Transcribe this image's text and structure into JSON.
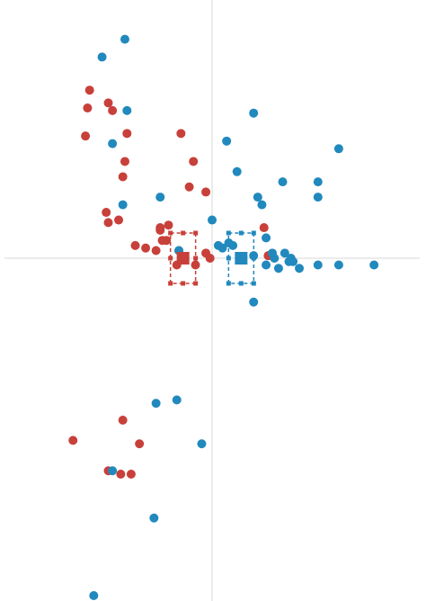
{
  "chart_data": {
    "type": "scatter",
    "title": "",
    "xlabel": "",
    "ylabel": "",
    "xlim": [
      -1.0,
      1.0
    ],
    "ylim": [
      -1.0,
      1.0
    ],
    "grid": false,
    "zero_lines": true,
    "series": [
      {
        "color": "#c8403a",
        "points": [
          [
            -0.59,
            0.66
          ],
          [
            -0.5,
            0.61
          ],
          [
            -0.6,
            0.59
          ],
          [
            -0.48,
            0.58
          ],
          [
            -0.61,
            0.48
          ],
          [
            -0.41,
            0.49
          ],
          [
            -0.15,
            0.49
          ],
          [
            -0.42,
            0.38
          ],
          [
            -0.09,
            0.38
          ],
          [
            -0.43,
            0.32
          ],
          [
            -0.11,
            0.28
          ],
          [
            -0.03,
            0.26
          ],
          [
            -0.51,
            0.18
          ],
          [
            -0.45,
            0.15
          ],
          [
            -0.5,
            0.14
          ],
          [
            -0.21,
            0.13
          ],
          [
            -0.25,
            0.12
          ],
          [
            -0.25,
            0.11
          ],
          [
            -0.24,
            0.07
          ],
          [
            -0.22,
            0.07
          ],
          [
            -0.37,
            0.05
          ],
          [
            -0.32,
            0.04
          ],
          [
            -0.27,
            0.03
          ],
          [
            -0.03,
            0.02
          ],
          [
            -0.01,
            0.0
          ],
          [
            0.25,
            0.12
          ],
          [
            0.27,
            0.01
          ],
          [
            -0.43,
            -0.48
          ],
          [
            -0.67,
            -0.54
          ],
          [
            -0.35,
            -0.55
          ],
          [
            -0.5,
            -0.63
          ],
          [
            -0.44,
            -0.64
          ],
          [
            -0.39,
            -0.64
          ],
          [
            -0.16,
            0.03
          ],
          [
            -0.17,
            -0.02
          ],
          [
            -0.08,
            -0.02
          ]
        ]
      },
      {
        "color": "#2189bd",
        "points": [
          [
            -0.42,
            0.86
          ],
          [
            -0.53,
            0.79
          ],
          [
            -0.41,
            0.58
          ],
          [
            0.2,
            0.57
          ],
          [
            -0.48,
            0.45
          ],
          [
            0.07,
            0.46
          ],
          [
            0.61,
            0.43
          ],
          [
            0.12,
            0.34
          ],
          [
            0.34,
            0.3
          ],
          [
            0.51,
            0.3
          ],
          [
            -0.25,
            0.24
          ],
          [
            0.22,
            0.24
          ],
          [
            0.24,
            0.21
          ],
          [
            0.51,
            0.24
          ],
          [
            -0.43,
            0.21
          ],
          [
            0.0,
            0.15
          ],
          [
            0.26,
            0.08
          ],
          [
            0.03,
            0.05
          ],
          [
            0.08,
            0.06
          ],
          [
            0.1,
            0.05
          ],
          [
            0.05,
            0.04
          ],
          [
            0.29,
            0.02
          ],
          [
            0.35,
            0.02
          ],
          [
            0.2,
            0.01
          ],
          [
            0.3,
            0.0
          ],
          [
            0.38,
            0.0
          ],
          [
            0.39,
            -0.01
          ],
          [
            0.37,
            -0.01
          ],
          [
            0.26,
            -0.02
          ],
          [
            0.32,
            -0.03
          ],
          [
            0.42,
            -0.03
          ],
          [
            0.51,
            -0.02
          ],
          [
            0.61,
            -0.02
          ],
          [
            0.78,
            -0.02
          ],
          [
            0.2,
            -0.13
          ],
          [
            -0.27,
            -0.43
          ],
          [
            -0.17,
            -0.42
          ],
          [
            -0.05,
            -0.55
          ],
          [
            -0.48,
            -0.63
          ],
          [
            -0.28,
            -0.77
          ],
          [
            -0.57,
            -1.0
          ],
          [
            -0.16,
            0.03
          ]
        ]
      }
    ],
    "centroids": [
      {
        "color": "#c8403a",
        "x": -0.14,
        "y": 0.0
      },
      {
        "color": "#2189bd",
        "x": 0.14,
        "y": 0.0
      }
    ]
  }
}
